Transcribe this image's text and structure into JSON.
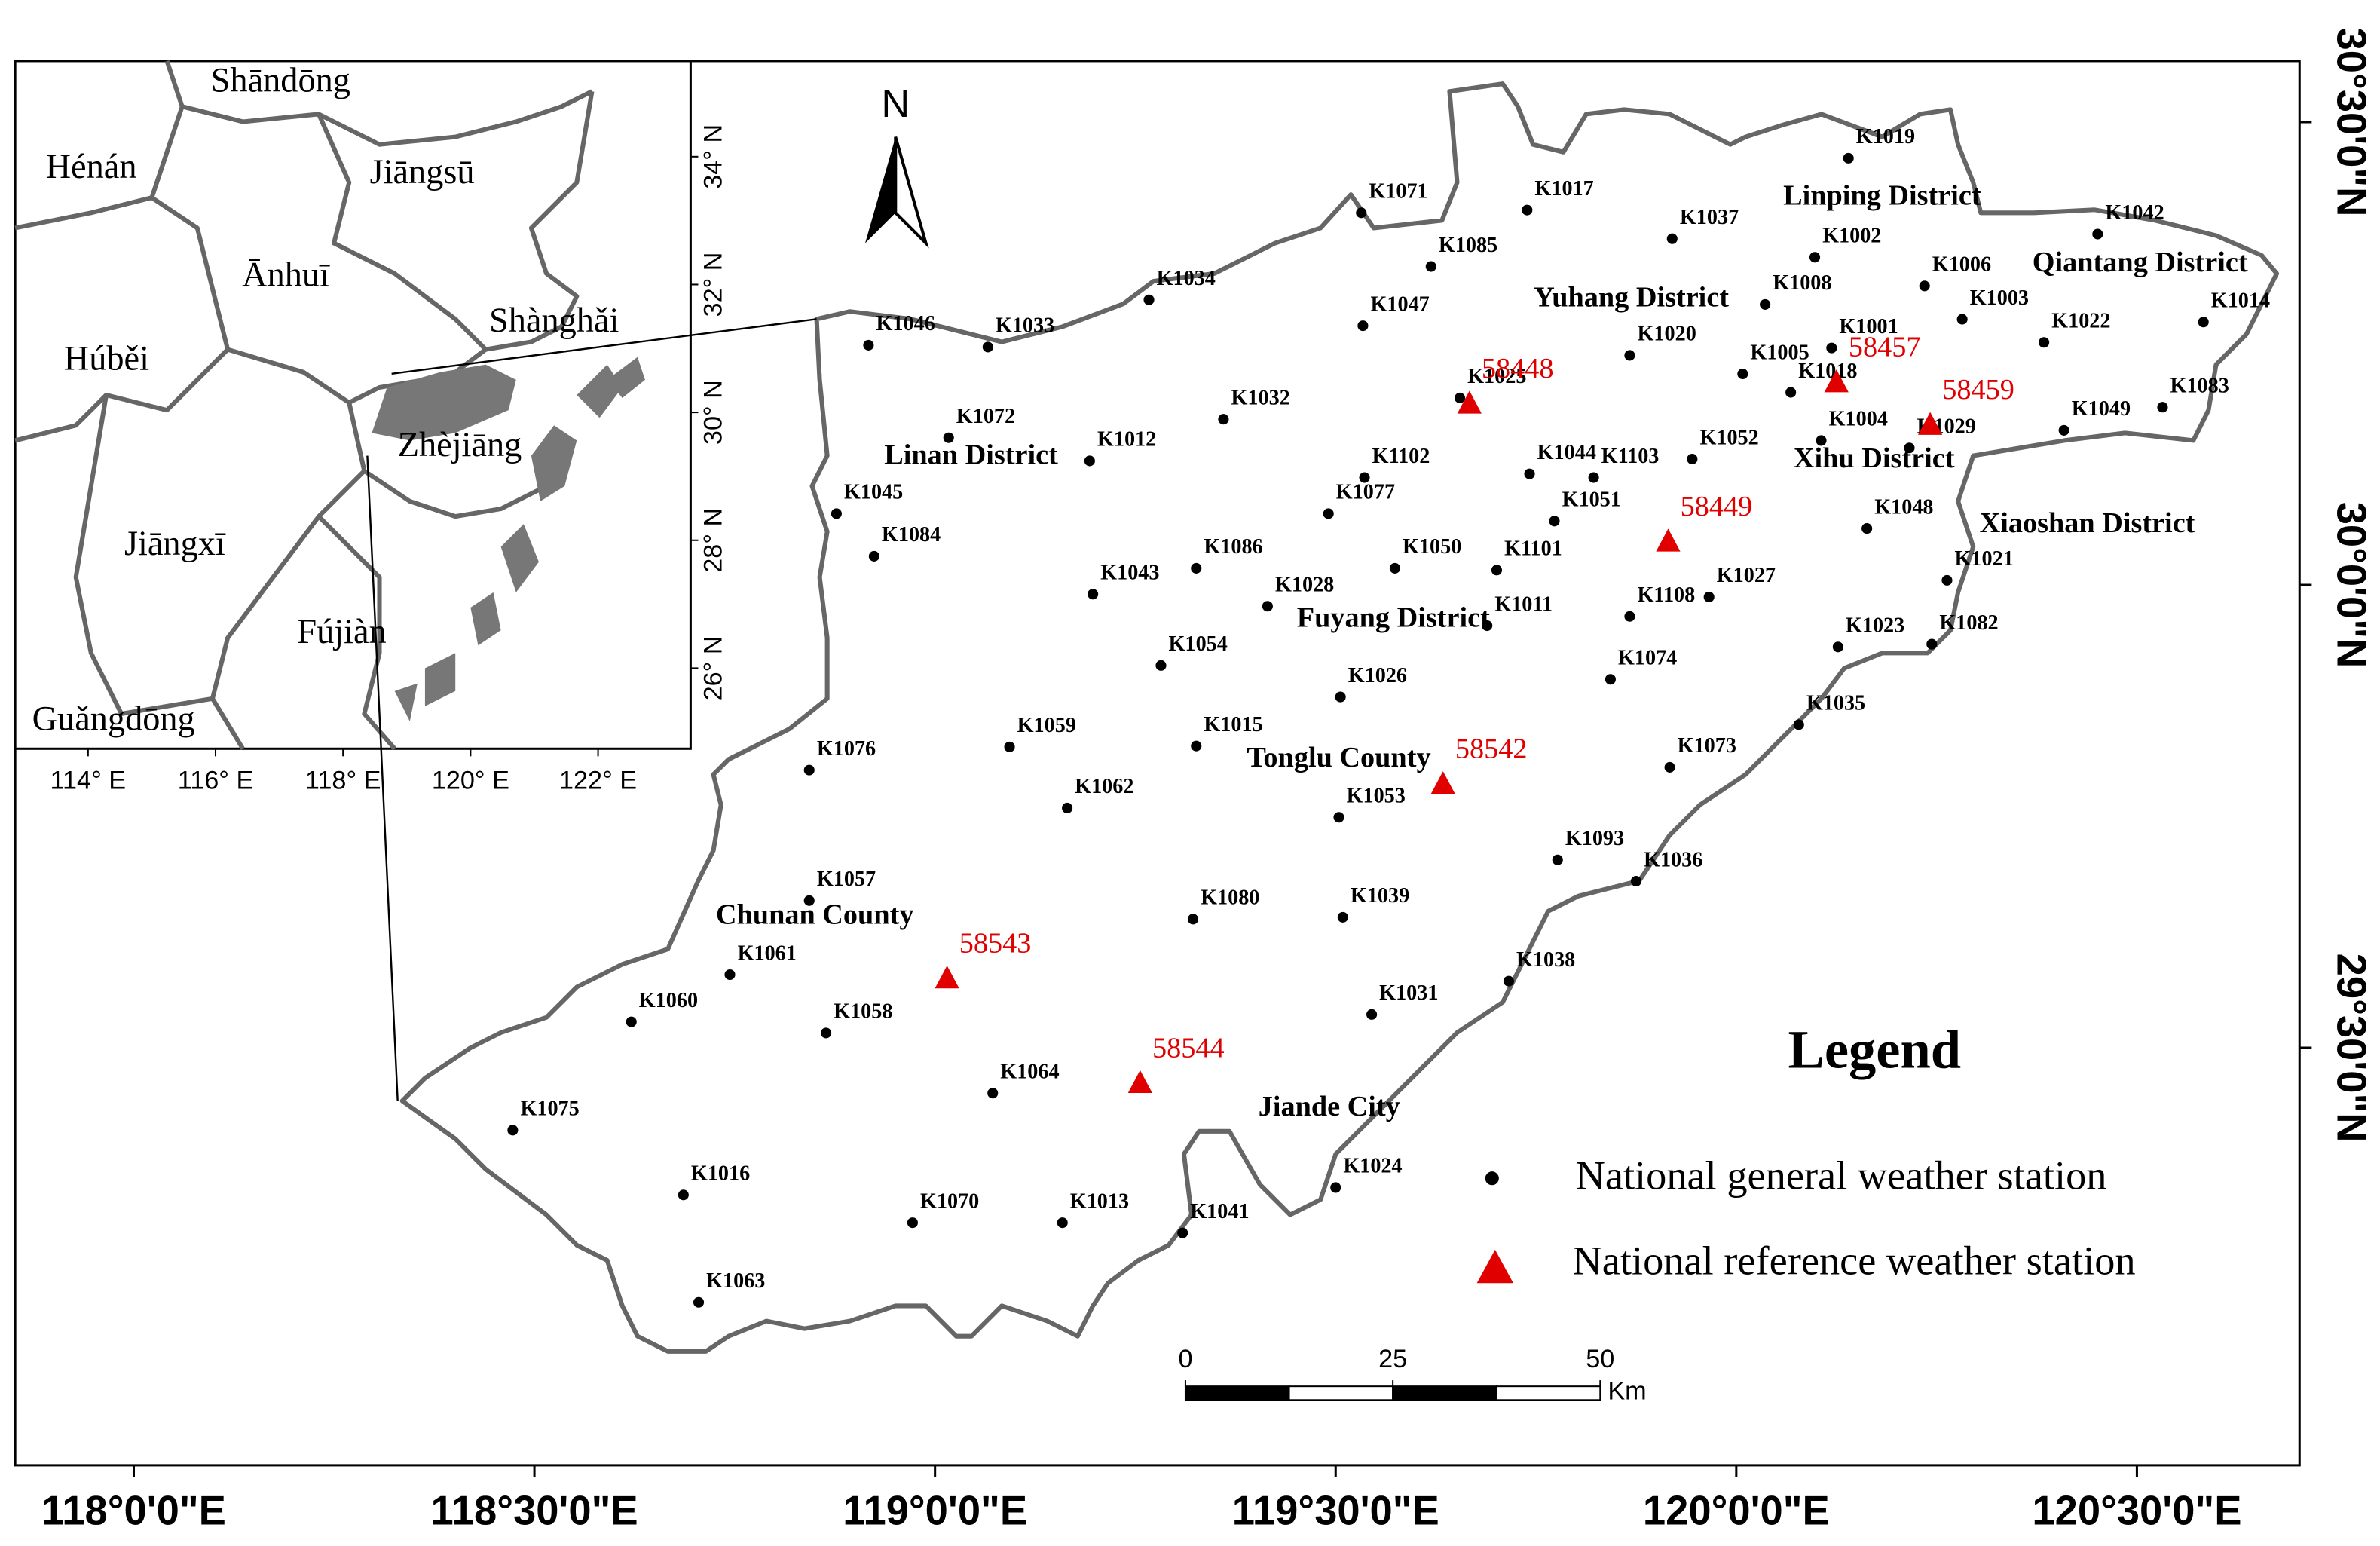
{
  "main_map": {
    "xlim": [
      117.852,
      120.703
    ],
    "ylim": [
      29.049,
      30.566
    ],
    "xticks": [
      {
        "value": 118,
        "label": "118°0'0\"E"
      },
      {
        "value": 118.5,
        "label": "118°30'0\"E"
      },
      {
        "value": 119,
        "label": "119°0'0\"E"
      },
      {
        "value": 119.5,
        "label": "119°30'0\"E"
      },
      {
        "value": 120,
        "label": "120°0'0\"E"
      },
      {
        "value": 120.5,
        "label": "120°30'0\"E"
      }
    ],
    "yticks": [
      {
        "value": 29.5,
        "label": "29°30'0\"N"
      },
      {
        "value": 30,
        "label": "30°0'0\"N"
      },
      {
        "value": 30.5,
        "label": "30°30'0\"N"
      }
    ],
    "north": "N",
    "scale_bar": {
      "ticks": [
        0,
        25,
        50
      ],
      "unit": "Km"
    },
    "places": [
      {
        "label": "Linping District",
        "lon": 120.182,
        "lat": 30.418
      },
      {
        "label": "Yuhang District",
        "lon": 119.869,
        "lat": 30.308
      },
      {
        "label": "Qiantang District",
        "lon": 120.504,
        "lat": 30.346
      },
      {
        "label": "Xihu District",
        "lon": 120.172,
        "lat": 30.134
      },
      {
        "label": "Linan District",
        "lon": 119.045,
        "lat": 30.138
      },
      {
        "label": "Xiaoshan District",
        "lon": 120.438,
        "lat": 30.064
      },
      {
        "label": "Fuyang District",
        "lon": 119.572,
        "lat": 29.962
      },
      {
        "label": "Tonglu County",
        "lon": 119.504,
        "lat": 29.811
      },
      {
        "label": "Chunan County",
        "lon": 118.85,
        "lat": 29.641
      },
      {
        "label": "Jiande City",
        "lon": 119.492,
        "lat": 29.434
      }
    ],
    "general_stations": [
      {
        "label": "K1019",
        "lon": 120.14,
        "lat": 30.461
      },
      {
        "label": "K1071",
        "lon": 119.532,
        "lat": 30.402
      },
      {
        "label": "K1017",
        "lon": 119.739,
        "lat": 30.405
      },
      {
        "label": "K1037",
        "lon": 119.92,
        "lat": 30.374
      },
      {
        "label": "K1002",
        "lon": 120.098,
        "lat": 30.354
      },
      {
        "label": "K1085",
        "lon": 119.619,
        "lat": 30.344
      },
      {
        "label": "K1042",
        "lon": 120.451,
        "lat": 30.379
      },
      {
        "label": "K1006",
        "lon": 120.235,
        "lat": 30.323
      },
      {
        "label": "K1008",
        "lon": 120.036,
        "lat": 30.303
      },
      {
        "label": "K1034",
        "lon": 119.267,
        "lat": 30.308
      },
      {
        "label": "K1003",
        "lon": 120.282,
        "lat": 30.287
      },
      {
        "label": "K1047",
        "lon": 119.534,
        "lat": 30.28
      },
      {
        "label": "K1001",
        "lon": 120.119,
        "lat": 30.256
      },
      {
        "label": "K1022",
        "lon": 120.384,
        "lat": 30.262
      },
      {
        "label": "K1014",
        "lon": 120.583,
        "lat": 30.284
      },
      {
        "label": "K1046",
        "lon": 118.917,
        "lat": 30.259
      },
      {
        "label": "K1033",
        "lon": 119.066,
        "lat": 30.257
      },
      {
        "label": "K1020",
        "lon": 119.867,
        "lat": 30.248
      },
      {
        "label": "K1018",
        "lon": 120.068,
        "lat": 30.208
      },
      {
        "label": "K1005",
        "lon": 120.008,
        "lat": 30.228
      },
      {
        "label": "K1025",
        "lon": 119.655,
        "lat": 30.202
      },
      {
        "label": "K1032",
        "lon": 119.36,
        "lat": 30.179
      },
      {
        "label": "K1072",
        "lon": 119.017,
        "lat": 30.159
      },
      {
        "label": "K1012",
        "lon": 119.193,
        "lat": 30.134
      },
      {
        "label": "K1052",
        "lon": 119.945,
        "lat": 30.136
      },
      {
        "label": "K1004",
        "lon": 120.106,
        "lat": 30.156
      },
      {
        "label": "K1029",
        "lon": 120.216,
        "lat": 30.148
      },
      {
        "label": "K1049",
        "lon": 120.409,
        "lat": 30.167
      },
      {
        "label": "K1083",
        "lon": 120.532,
        "lat": 30.192
      },
      {
        "label": "K1044",
        "lon": 119.742,
        "lat": 30.12
      },
      {
        "label": "K1103",
        "lon": 119.822,
        "lat": 30.116
      },
      {
        "label": "K1102",
        "lon": 119.536,
        "lat": 30.116
      },
      {
        "label": "K1045",
        "lon": 118.877,
        "lat": 30.077
      },
      {
        "label": "K1077",
        "lon": 119.491,
        "lat": 30.077
      },
      {
        "label": "K1051",
        "lon": 119.773,
        "lat": 30.069
      },
      {
        "label": "K1048",
        "lon": 120.163,
        "lat": 30.061
      },
      {
        "label": "K1084",
        "lon": 118.924,
        "lat": 30.031
      },
      {
        "label": "K1086",
        "lon": 119.326,
        "lat": 30.018
      },
      {
        "label": "K1050",
        "lon": 119.574,
        "lat": 30.018
      },
      {
        "label": "K1101",
        "lon": 119.701,
        "lat": 30.016
      },
      {
        "label": "K1021",
        "lon": 120.263,
        "lat": 30.005
      },
      {
        "label": "K1043",
        "lon": 119.197,
        "lat": 29.99
      },
      {
        "label": "K1027",
        "lon": 119.966,
        "lat": 29.987
      },
      {
        "label": "K1028",
        "lon": 119.415,
        "lat": 29.977
      },
      {
        "label": "K1108",
        "lon": 119.867,
        "lat": 29.966
      },
      {
        "label": "K1011",
        "lon": 119.689,
        "lat": 29.956
      },
      {
        "label": "K1082",
        "lon": 120.244,
        "lat": 29.936
      },
      {
        "label": "K1023",
        "lon": 120.127,
        "lat": 29.933
      },
      {
        "label": "K1054",
        "lon": 119.282,
        "lat": 29.913
      },
      {
        "label": "K1074",
        "lon": 119.843,
        "lat": 29.898
      },
      {
        "label": "K1026",
        "lon": 119.506,
        "lat": 29.879
      },
      {
        "label": "K1035",
        "lon": 120.078,
        "lat": 29.849
      },
      {
        "label": "K1059",
        "lon": 119.093,
        "lat": 29.825
      },
      {
        "label": "K1015",
        "lon": 119.326,
        "lat": 29.826
      },
      {
        "label": "K1076",
        "lon": 118.843,
        "lat": 29.8
      },
      {
        "label": "K1073",
        "lon": 119.917,
        "lat": 29.803
      },
      {
        "label": "K1062",
        "lon": 119.165,
        "lat": 29.759
      },
      {
        "label": "K1053",
        "lon": 119.504,
        "lat": 29.749
      },
      {
        "label": "K1093",
        "lon": 119.777,
        "lat": 29.703
      },
      {
        "label": "K1036",
        "lon": 119.875,
        "lat": 29.68
      },
      {
        "label": "K1057",
        "lon": 118.843,
        "lat": 29.659
      },
      {
        "label": "K1080",
        "lon": 119.322,
        "lat": 29.639
      },
      {
        "label": "K1039",
        "lon": 119.509,
        "lat": 29.641
      },
      {
        "label": "K1061",
        "lon": 118.744,
        "lat": 29.579
      },
      {
        "label": "K1038",
        "lon": 119.716,
        "lat": 29.572
      },
      {
        "label": "K1060",
        "lon": 118.621,
        "lat": 29.528
      },
      {
        "label": "K1031",
        "lon": 119.545,
        "lat": 29.536
      },
      {
        "label": "K1058",
        "lon": 118.864,
        "lat": 29.516
      },
      {
        "label": "K1064",
        "lon": 119.072,
        "lat": 29.451
      },
      {
        "label": "K1075",
        "lon": 118.473,
        "lat": 29.411
      },
      {
        "label": "K1016",
        "lon": 118.686,
        "lat": 29.341
      },
      {
        "label": "K1024",
        "lon": 119.5,
        "lat": 29.349
      },
      {
        "label": "K1070",
        "lon": 118.972,
        "lat": 29.311
      },
      {
        "label": "K1013",
        "lon": 119.159,
        "lat": 29.311
      },
      {
        "label": "K1041",
        "lon": 119.309,
        "lat": 29.3
      },
      {
        "label": "K1063",
        "lon": 118.705,
        "lat": 29.225
      }
    ],
    "reference_stations": [
      {
        "label": "58448",
        "lon": 119.667,
        "lat": 30.195
      },
      {
        "label": "58457",
        "lon": 120.125,
        "lat": 30.218
      },
      {
        "label": "58459",
        "lon": 120.242,
        "lat": 30.172
      },
      {
        "label": "58449",
        "lon": 119.915,
        "lat": 30.046
      },
      {
        "label": "58542",
        "lon": 119.634,
        "lat": 29.784
      },
      {
        "label": "58543",
        "lon": 119.015,
        "lat": 29.574
      },
      {
        "label": "58544",
        "lon": 119.256,
        "lat": 29.461
      }
    ],
    "legend": {
      "title": "Legend",
      "items": [
        "National general weather station",
        "National reference weather station"
      ]
    }
  },
  "inset_map": {
    "xlim": [
      112.857,
      123.452
    ],
    "ylim": [
      24.74,
      35.496
    ],
    "xticks": [
      {
        "value": 114,
        "label": "114° E"
      },
      {
        "value": 116,
        "label": "116° E"
      },
      {
        "value": 118,
        "label": "118° E"
      },
      {
        "value": 120,
        "label": "120° E"
      },
      {
        "value": 122,
        "label": "122° E"
      }
    ],
    "yticks": [
      {
        "value": 26,
        "label": "26° N"
      },
      {
        "value": 28,
        "label": "28° N"
      },
      {
        "value": 30,
        "label": "30° N"
      },
      {
        "value": 32,
        "label": "32° N"
      },
      {
        "value": 34,
        "label": "34° N"
      }
    ],
    "provinces": [
      {
        "label": "Shāndōng",
        "lon": 117.02,
        "lat": 35.14
      },
      {
        "label": "Hénán",
        "lon": 114.05,
        "lat": 33.79
      },
      {
        "label": "Jiāngsū",
        "lon": 119.24,
        "lat": 33.71
      },
      {
        "label": "Ānhuī",
        "lon": 117.1,
        "lat": 32.1
      },
      {
        "label": "Shànghǎi",
        "lon": 121.31,
        "lat": 31.39
      },
      {
        "label": "Húběi",
        "lon": 114.29,
        "lat": 30.79
      },
      {
        "label": "Zhèjiāng",
        "lon": 119.83,
        "lat": 29.44
      },
      {
        "label": "Jiāngxī",
        "lon": 115.36,
        "lat": 27.9
      },
      {
        "label": "Fújiàn",
        "lon": 117.98,
        "lat": 26.52
      },
      {
        "label": "Guǎngdōng",
        "lon": 114.4,
        "lat": 25.16
      }
    ]
  }
}
